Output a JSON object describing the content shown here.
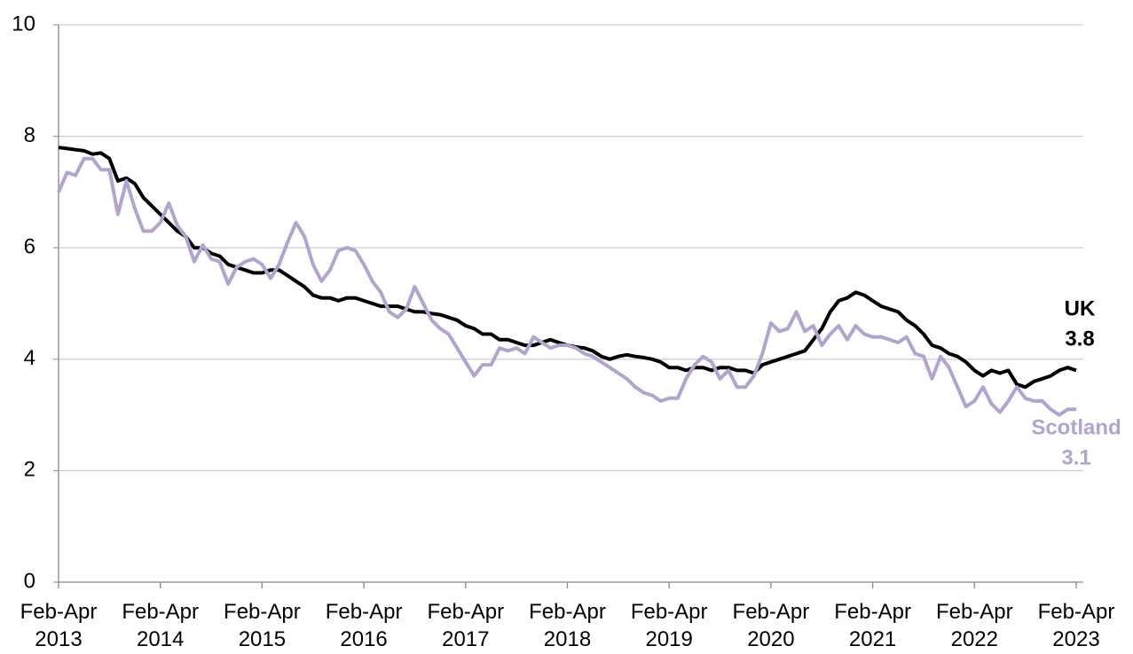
{
  "chart_data": {
    "type": "line",
    "categories": [
      "Feb-Apr 2013",
      null,
      null,
      null,
      null,
      null,
      null,
      null,
      null,
      null,
      null,
      null,
      "Feb-Apr 2014",
      null,
      null,
      null,
      null,
      null,
      null,
      null,
      null,
      null,
      null,
      null,
      "Feb-Apr 2015",
      null,
      null,
      null,
      null,
      null,
      null,
      null,
      null,
      null,
      null,
      null,
      "Feb-Apr 2016",
      null,
      null,
      null,
      null,
      null,
      null,
      null,
      null,
      null,
      null,
      null,
      "Feb-Apr 2017",
      null,
      null,
      null,
      null,
      null,
      null,
      null,
      null,
      null,
      null,
      null,
      "Feb-Apr 2018",
      null,
      null,
      null,
      null,
      null,
      null,
      null,
      null,
      null,
      null,
      null,
      "Feb-Apr 2019",
      null,
      null,
      null,
      null,
      null,
      null,
      null,
      null,
      null,
      null,
      null,
      "Feb-Apr 2020",
      null,
      null,
      null,
      null,
      null,
      null,
      null,
      null,
      null,
      null,
      null,
      "Feb-Apr 2021",
      null,
      null,
      null,
      null,
      null,
      null,
      null,
      null,
      null,
      null,
      null,
      "Feb-Apr 2022",
      null,
      null,
      null,
      null,
      null,
      null,
      null,
      null,
      null,
      null,
      null,
      "Feb-Apr 2023"
    ],
    "series": [
      {
        "name": "UK",
        "color": "#000000",
        "values": [
          7.8,
          7.78,
          7.76,
          7.74,
          7.68,
          7.7,
          7.6,
          7.2,
          7.25,
          7.15,
          6.9,
          6.75,
          6.6,
          6.45,
          6.3,
          6.2,
          6.0,
          6.0,
          5.9,
          5.85,
          5.7,
          5.65,
          5.6,
          5.55,
          5.55,
          5.6,
          5.6,
          5.5,
          5.4,
          5.3,
          5.15,
          5.1,
          5.1,
          5.05,
          5.1,
          5.1,
          5.05,
          5.0,
          4.95,
          4.95,
          4.95,
          4.9,
          4.85,
          4.85,
          4.82,
          4.8,
          4.75,
          4.7,
          4.6,
          4.55,
          4.45,
          4.45,
          4.35,
          4.35,
          4.3,
          4.25,
          4.25,
          4.3,
          4.35,
          4.3,
          4.25,
          4.22,
          4.2,
          4.15,
          4.05,
          4.0,
          4.05,
          4.08,
          4.05,
          4.03,
          4.0,
          3.95,
          3.85,
          3.85,
          3.8,
          3.85,
          3.85,
          3.8,
          3.85,
          3.85,
          3.8,
          3.8,
          3.75,
          3.9,
          3.95,
          4.0,
          4.05,
          4.1,
          4.15,
          4.35,
          4.55,
          4.85,
          5.05,
          5.1,
          5.2,
          5.15,
          5.05,
          4.95,
          4.9,
          4.85,
          4.7,
          4.6,
          4.45,
          4.25,
          4.2,
          4.1,
          4.05,
          3.95,
          3.8,
          3.7,
          3.8,
          3.75,
          3.8,
          3.55,
          3.5,
          3.6,
          3.65,
          3.7,
          3.8,
          3.85,
          3.8
        ]
      },
      {
        "name": "Scotland",
        "color": "#b3a3cf",
        "values": [
          7.0,
          7.35,
          7.3,
          7.6,
          7.6,
          7.4,
          7.4,
          6.6,
          7.2,
          6.7,
          6.3,
          6.3,
          6.45,
          6.8,
          6.4,
          6.2,
          5.75,
          6.05,
          5.8,
          5.75,
          5.35,
          5.65,
          5.75,
          5.8,
          5.7,
          5.45,
          5.7,
          6.1,
          6.45,
          6.2,
          5.7,
          5.4,
          5.6,
          5.95,
          6.0,
          5.95,
          5.7,
          5.4,
          5.2,
          4.85,
          4.75,
          4.9,
          5.3,
          5.0,
          4.7,
          4.55,
          4.45,
          4.2,
          3.95,
          3.7,
          3.9,
          3.9,
          4.2,
          4.15,
          4.2,
          4.1,
          4.4,
          4.3,
          4.2,
          4.25,
          4.25,
          4.2,
          4.1,
          4.05,
          3.95,
          3.85,
          3.75,
          3.65,
          3.5,
          3.4,
          3.35,
          3.25,
          3.3,
          3.3,
          3.65,
          3.9,
          4.05,
          3.95,
          3.65,
          3.8,
          3.5,
          3.5,
          3.7,
          4.1,
          4.65,
          4.5,
          4.55,
          4.85,
          4.5,
          4.6,
          4.25,
          4.45,
          4.6,
          4.35,
          4.6,
          4.45,
          4.4,
          4.4,
          4.35,
          4.3,
          4.4,
          4.1,
          4.05,
          3.65,
          4.05,
          3.85,
          3.5,
          3.15,
          3.25,
          3.5,
          3.2,
          3.05,
          3.25,
          3.5,
          3.3,
          3.25,
          3.25,
          3.1,
          3.0,
          3.1,
          3.1
        ]
      }
    ],
    "ylim": [
      0,
      10
    ],
    "yticks": [
      0,
      2,
      4,
      6,
      8,
      10
    ],
    "grid": true
  }
}
